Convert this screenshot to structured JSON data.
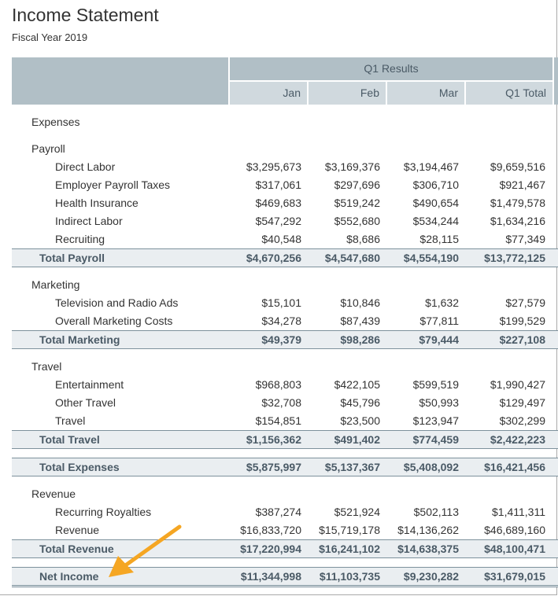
{
  "title": "Income Statement",
  "subtitle": "Fiscal Year 2019",
  "header": {
    "group": "Q1 Results",
    "columns": [
      "Jan",
      "Feb",
      "Mar",
      "Q1 Total"
    ]
  },
  "accent_arrow_color": "#f5a623",
  "rows": [
    {
      "type": "section",
      "label": "Expenses"
    },
    {
      "type": "section",
      "label": "Payroll"
    },
    {
      "type": "item",
      "label": "Direct Labor",
      "values": [
        "$3,295,673",
        "$3,169,376",
        "$3,194,467",
        "$9,659,516"
      ]
    },
    {
      "type": "item",
      "label": "Employer Payroll Taxes",
      "values": [
        "$317,061",
        "$297,696",
        "$306,710",
        "$921,467"
      ]
    },
    {
      "type": "item",
      "label": "Health Insurance",
      "values": [
        "$469,683",
        "$519,242",
        "$490,654",
        "$1,479,578"
      ]
    },
    {
      "type": "item",
      "label": "Indirect Labor",
      "values": [
        "$547,292",
        "$552,680",
        "$534,244",
        "$1,634,216"
      ]
    },
    {
      "type": "item",
      "label": "Recruiting",
      "values": [
        "$40,548",
        "$8,686",
        "$28,115",
        "$77,349"
      ]
    },
    {
      "type": "total",
      "label": "Total Payroll",
      "values": [
        "$4,670,256",
        "$4,547,680",
        "$4,554,190",
        "$13,772,125"
      ]
    },
    {
      "type": "section",
      "label": "Marketing"
    },
    {
      "type": "item",
      "label": "Television and Radio Ads",
      "values": [
        "$15,101",
        "$10,846",
        "$1,632",
        "$27,579"
      ]
    },
    {
      "type": "item",
      "label": "Overall Marketing Costs",
      "values": [
        "$34,278",
        "$87,439",
        "$77,811",
        "$199,529"
      ]
    },
    {
      "type": "total",
      "label": "Total Marketing",
      "values": [
        "$49,379",
        "$98,286",
        "$79,444",
        "$227,108"
      ]
    },
    {
      "type": "section",
      "label": "Travel"
    },
    {
      "type": "item",
      "label": "Entertainment",
      "values": [
        "$968,803",
        "$422,105",
        "$599,519",
        "$1,990,427"
      ]
    },
    {
      "type": "item",
      "label": "Other Travel",
      "values": [
        "$32,708",
        "$45,796",
        "$50,993",
        "$129,497"
      ]
    },
    {
      "type": "item",
      "label": "Travel",
      "values": [
        "$154,851",
        "$23,500",
        "$123,947",
        "$302,299"
      ]
    },
    {
      "type": "total",
      "label": "Total Travel",
      "values": [
        "$1,156,362",
        "$491,402",
        "$774,459",
        "$2,422,223"
      ]
    },
    {
      "type": "total gap",
      "label": "Total Expenses",
      "values": [
        "$5,875,997",
        "$5,137,367",
        "$5,408,092",
        "$16,421,456"
      ]
    },
    {
      "type": "section",
      "label": "Revenue"
    },
    {
      "type": "item",
      "label": "Recurring Royalties",
      "values": [
        "$387,274",
        "$521,924",
        "$502,113",
        "$1,411,311"
      ]
    },
    {
      "type": "item",
      "label": "Revenue",
      "values": [
        "$16,833,720",
        "$15,719,178",
        "$14,136,262",
        "$46,689,160"
      ]
    },
    {
      "type": "total",
      "label": "Total Revenue",
      "values": [
        "$17,220,994",
        "$16,241,102",
        "$14,638,375",
        "$48,100,471"
      ]
    },
    {
      "type": "total gap final",
      "label": "Net Income",
      "values": [
        "$11,344,998",
        "$11,103,735",
        "$9,230,282",
        "$31,679,015"
      ]
    }
  ]
}
